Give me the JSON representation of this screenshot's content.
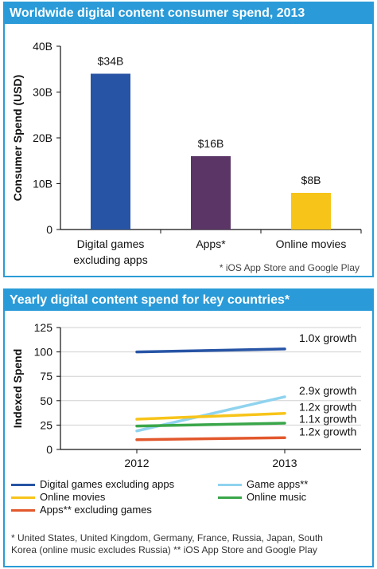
{
  "panel1": {
    "title": "Worldwide digital content consumer spend, 2013",
    "footnote": "* iOS App Store and Google Play",
    "banner_color": "#2a9bd8"
  },
  "panel2": {
    "title": "Yearly digital content spend for key countries*",
    "footnote_line1": "* United States, United Kingdom, Germany, France, Russia, Japan, South",
    "footnote_line2": "Korea (online music excludes Russia) ** iOS App Store and Google Play"
  },
  "chart_data": [
    {
      "type": "bar",
      "title": "Worldwide digital content consumer spend, 2013",
      "ylabel": "Consumer Spend (USD)",
      "xlabel": "",
      "ylim": [
        0,
        40
      ],
      "yticks": [
        0,
        10,
        20,
        30,
        40
      ],
      "ytick_labels": [
        "0",
        "10B",
        "20B",
        "30B",
        "40B"
      ],
      "categories": [
        [
          "Digital games",
          "excluding apps"
        ],
        [
          "Apps*"
        ],
        [
          "Online movies"
        ]
      ],
      "values": [
        34,
        16,
        8
      ],
      "data_labels": [
        "$34B",
        "$16B",
        "$8B"
      ],
      "colors": [
        "#2754a5",
        "#5b3566",
        "#f7c41a"
      ],
      "grid": false
    },
    {
      "type": "line",
      "title": "Yearly digital content spend for key countries*",
      "ylabel": "Indexed Spend",
      "xlabel": "",
      "x": [
        "2012",
        "2013"
      ],
      "ylim": [
        0,
        125
      ],
      "yticks": [
        0,
        25,
        50,
        75,
        100,
        125
      ],
      "grid": true,
      "series": [
        {
          "name": "Digital games excluding apps",
          "values": [
            100,
            103
          ],
          "color": "#2754a5",
          "annotation": "1.0x growth"
        },
        {
          "name": "Game apps**",
          "values": [
            19,
            54
          ],
          "color": "#8fd3ee",
          "annotation": "2.9x growth"
        },
        {
          "name": "Online movies",
          "values": [
            31,
            37
          ],
          "color": "#f7c41a",
          "annotation": "1.2x growth"
        },
        {
          "name": "Online music",
          "values": [
            24,
            27
          ],
          "color": "#3aa64a",
          "annotation": "1.1x growth"
        },
        {
          "name": "Apps** excluding games",
          "values": [
            10,
            12
          ],
          "color": "#e2582c",
          "annotation": "1.2x growth"
        }
      ],
      "legend_position": "bottom"
    }
  ]
}
